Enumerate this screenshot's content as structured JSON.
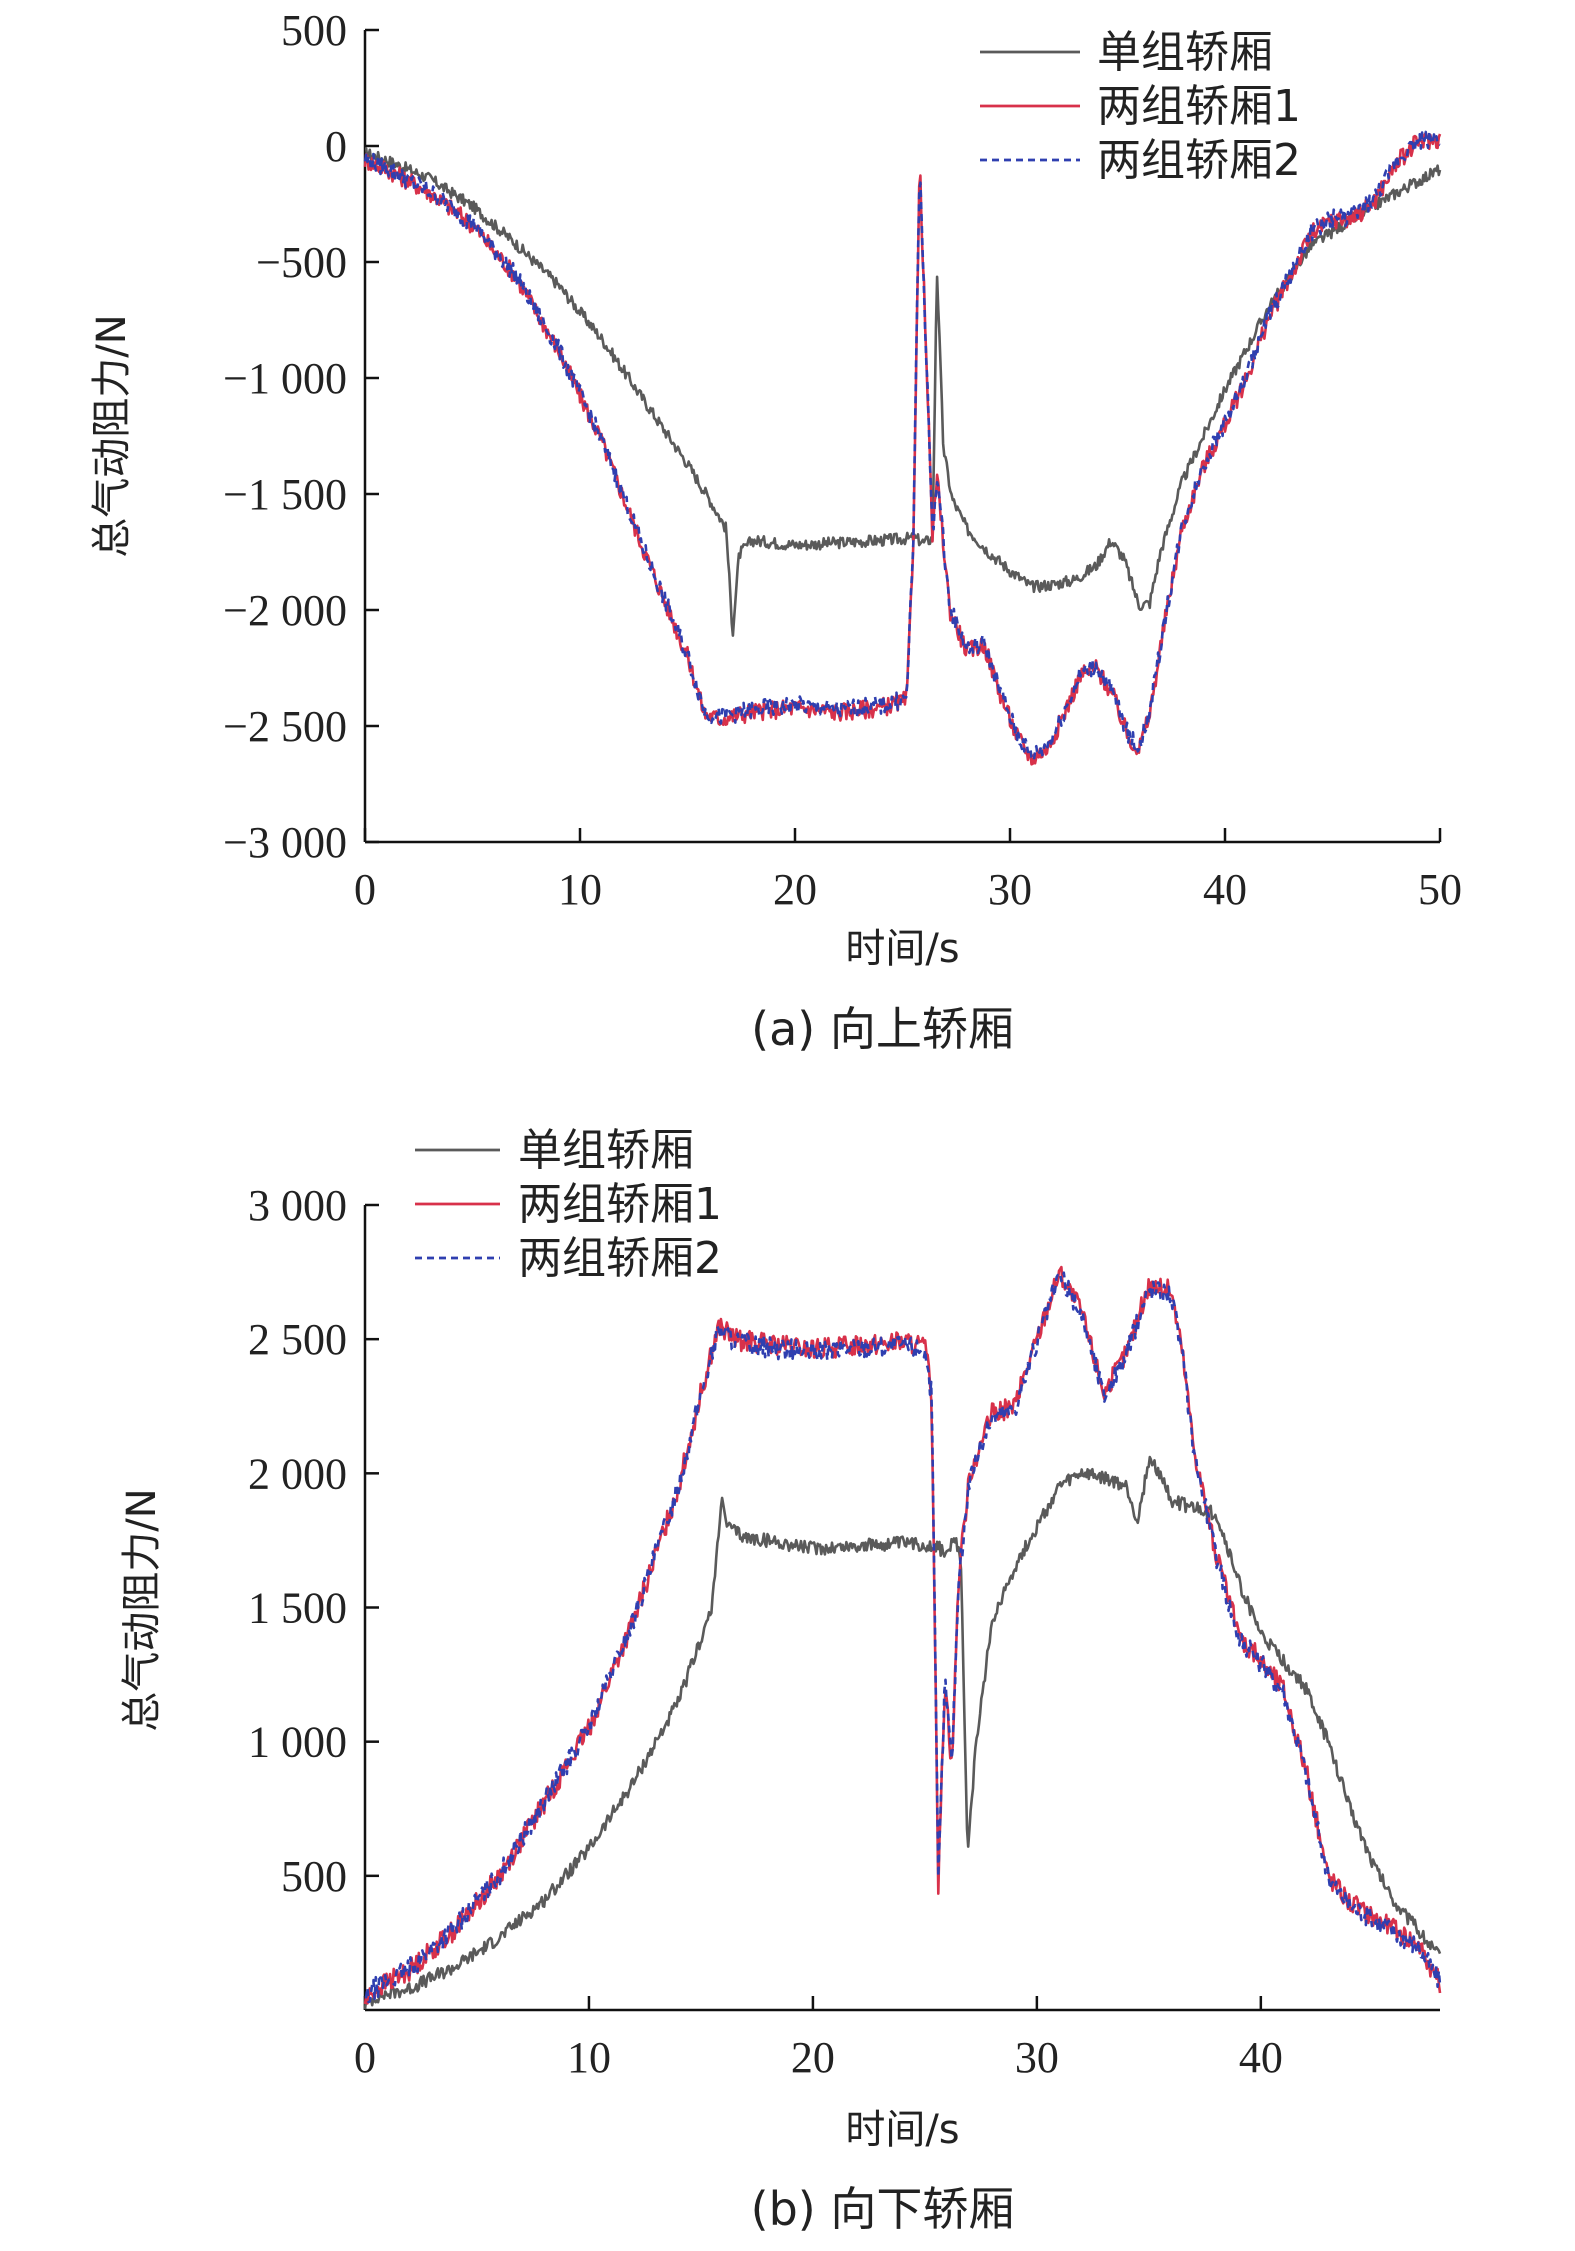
{
  "chart_data": [
    {
      "type": "line",
      "caption": "(a) 向上轿厢",
      "xlabel": "时间/s",
      "ylabel": "总气动阻力/N",
      "xlim": [
        0,
        50
      ],
      "ylim": [
        -3000,
        500
      ],
      "x_ticks": [
        0,
        10,
        20,
        30,
        40,
        50
      ],
      "x_tick_labels": [
        "0",
        "10",
        "20",
        "30",
        "40",
        "50"
      ],
      "y_ticks": [
        500,
        0,
        -500,
        -1000,
        -1500,
        -2000,
        -2500,
        -3000
      ],
      "y_tick_labels": [
        "500",
        "0",
        "−500",
        "−1 000",
        "−1 500",
        "−2 000",
        "−2 500",
        "−3 000"
      ],
      "legend_position": "top-right",
      "series": [
        {
          "name": "单组轿厢",
          "color": "#5a5a5a",
          "dash": "solid",
          "noise": 25,
          "x": [
            0,
            1,
            3,
            5,
            7,
            9,
            11,
            13,
            15,
            16,
            16.8,
            17.1,
            17.4,
            18,
            20,
            22,
            24,
            25.5,
            25.8,
            26,
            26.4,
            26.6,
            26.9,
            27.3,
            28,
            29,
            30,
            31,
            32,
            33,
            34,
            34.7,
            35.3,
            36,
            36.5,
            37,
            38,
            39,
            40,
            42,
            44,
            46,
            48,
            50
          ],
          "y": [
            -30,
            -60,
            -140,
            -260,
            -420,
            -600,
            -830,
            -1100,
            -1370,
            -1520,
            -1650,
            -2100,
            -1760,
            -1700,
            -1720,
            -1710,
            -1700,
            -1690,
            -1700,
            -1710,
            -1690,
            -520,
            -1300,
            -1520,
            -1650,
            -1750,
            -1830,
            -1900,
            -1890,
            -1870,
            -1810,
            -1700,
            -1780,
            -1980,
            -1970,
            -1750,
            -1450,
            -1250,
            -1050,
            -700,
            -430,
            -310,
            -200,
            -100
          ]
        },
        {
          "name": "两组轿厢1",
          "color": "#d8314a",
          "dash": "solid",
          "noise": 40,
          "x": [
            0,
            1,
            3,
            5,
            7,
            9,
            11,
            13,
            15,
            15.8,
            16.5,
            18,
            20,
            22,
            24,
            25.2,
            25.5,
            25.8,
            26.1,
            26.4,
            26.6,
            27.2,
            28,
            28.8,
            29.5,
            30.3,
            31,
            31.8,
            32.5,
            33.3,
            34,
            34.8,
            35.5,
            36,
            36.5,
            37.2,
            38,
            39,
            40,
            41,
            42,
            43,
            44,
            45,
            46,
            47,
            48,
            49,
            50
          ],
          "y": [
            -60,
            -100,
            -200,
            -340,
            -560,
            -880,
            -1270,
            -1750,
            -2200,
            -2450,
            -2470,
            -2440,
            -2420,
            -2440,
            -2420,
            -2390,
            -1700,
            -70,
            -900,
            -1700,
            -1420,
            -2000,
            -2180,
            -2150,
            -2350,
            -2540,
            -2640,
            -2590,
            -2450,
            -2280,
            -2250,
            -2370,
            -2550,
            -2600,
            -2450,
            -2050,
            -1650,
            -1380,
            -1200,
            -1000,
            -750,
            -570,
            -380,
            -320,
            -310,
            -230,
            -70,
            20,
            30
          ]
        },
        {
          "name": "两组轿厢2",
          "color": "#2f3fb0",
          "dash": "dashed",
          "noise": 40,
          "x": [
            0,
            1,
            3,
            5,
            7,
            9,
            11,
            13,
            15,
            15.8,
            16.5,
            18,
            20,
            22,
            24,
            25.2,
            25.5,
            25.8,
            26.1,
            26.4,
            26.6,
            27.2,
            28,
            28.8,
            29.5,
            30.3,
            31,
            31.8,
            32.5,
            33.3,
            34,
            34.8,
            35.5,
            36,
            36.5,
            37.2,
            38,
            39,
            40,
            41,
            42,
            43,
            44,
            45,
            46,
            47,
            48,
            49,
            50
          ],
          "y": [
            -55,
            -95,
            -195,
            -335,
            -555,
            -875,
            -1265,
            -1745,
            -2195,
            -2440,
            -2460,
            -2430,
            -2410,
            -2430,
            -2410,
            -2380,
            -1690,
            -75,
            -890,
            -1690,
            -1410,
            -1990,
            -2170,
            -2140,
            -2340,
            -2530,
            -2630,
            -2580,
            -2440,
            -2270,
            -2240,
            -2360,
            -2540,
            -2590,
            -2440,
            -2040,
            -1640,
            -1370,
            -1190,
            -990,
            -740,
            -560,
            -370,
            -310,
            -300,
            -220,
            -60,
            25,
            35
          ]
        }
      ]
    },
    {
      "type": "line",
      "caption": "(b) 向下轿厢",
      "xlabel": "时间/s",
      "ylabel": "总气动阻力/N",
      "xlim": [
        0,
        48
      ],
      "ylim": [
        0,
        3000
      ],
      "x_ticks": [
        0,
        10,
        20,
        30,
        40
      ],
      "x_tick_labels": [
        "0",
        "10",
        "20",
        "30",
        "40"
      ],
      "y_ticks": [
        500,
        1000,
        1500,
        2000,
        2500,
        3000
      ],
      "y_tick_labels": [
        "500",
        "1 000",
        "1 500",
        "2 000",
        "2 500",
        "3 000"
      ],
      "legend_position": "top-left",
      "series": [
        {
          "name": "单组轿厢",
          "color": "#5a5a5a",
          "dash": "solid",
          "noise": 25,
          "x": [
            0,
            0.5,
            2,
            4,
            6,
            8,
            10,
            12,
            14,
            15.5,
            15.9,
            16.2,
            17,
            18,
            20,
            22,
            24,
            25.5,
            26,
            26.3,
            26.6,
            26.9,
            27.3,
            28,
            29,
            30,
            31,
            32,
            33,
            34,
            34.5,
            35,
            35.5,
            36,
            37,
            38,
            39,
            40,
            41,
            42,
            43,
            44,
            45,
            46,
            47,
            48
          ],
          "y": [
            20,
            50,
            80,
            160,
            270,
            410,
            600,
            850,
            1150,
            1500,
            1900,
            1800,
            1760,
            1750,
            1720,
            1730,
            1740,
            1730,
            1700,
            1750,
            1700,
            600,
            1000,
            1450,
            1650,
            1800,
            1950,
            2000,
            1980,
            1950,
            1820,
            2050,
            2000,
            1900,
            1870,
            1850,
            1600,
            1400,
            1300,
            1200,
            1000,
            750,
            550,
            400,
            300,
            200
          ]
        },
        {
          "name": "两组轿厢1",
          "color": "#d8314a",
          "dash": "solid",
          "noise": 40,
          "x": [
            0,
            0.5,
            2,
            4,
            6,
            8,
            10,
            12,
            14,
            15,
            15.8,
            16.5,
            18,
            20,
            22,
            24,
            25,
            25.3,
            25.6,
            25.9,
            26.2,
            26.5,
            27,
            28,
            29,
            30,
            31,
            32,
            33,
            34,
            35,
            36,
            36.5,
            37,
            38,
            39,
            40,
            41,
            42,
            43,
            44,
            45,
            46,
            47,
            48
          ],
          "y": [
            30,
            80,
            150,
            300,
            500,
            770,
            1050,
            1450,
            1950,
            2300,
            2550,
            2500,
            2480,
            2460,
            2480,
            2490,
            2470,
            2300,
            470,
            1250,
            900,
            1600,
            2000,
            2220,
            2250,
            2500,
            2750,
            2600,
            2300,
            2450,
            2700,
            2680,
            2450,
            2100,
            1700,
            1400,
            1300,
            1200,
            900,
            500,
            400,
            350,
            300,
            250,
            100
          ]
        },
        {
          "name": "两组轿厢2",
          "color": "#2f3fb0",
          "dash": "dashed",
          "noise": 40,
          "x": [
            0,
            0.5,
            2,
            4,
            6,
            8,
            10,
            12,
            14,
            15,
            15.8,
            16.5,
            18,
            20,
            22,
            24,
            25,
            25.3,
            25.6,
            25.9,
            26.2,
            26.5,
            27,
            28,
            29,
            30,
            31,
            32,
            33,
            34,
            35,
            36,
            36.5,
            37,
            38,
            39,
            40,
            41,
            42,
            43,
            44,
            45,
            46,
            47,
            48
          ],
          "y": [
            35,
            85,
            155,
            305,
            505,
            775,
            1055,
            1455,
            1955,
            2295,
            2540,
            2490,
            2470,
            2450,
            2470,
            2480,
            2460,
            2290,
            480,
            1240,
            910,
            1590,
            1990,
            2210,
            2240,
            2490,
            2740,
            2590,
            2290,
            2440,
            2690,
            2670,
            2440,
            2090,
            1690,
            1390,
            1290,
            1190,
            890,
            490,
            390,
            340,
            290,
            240,
            105
          ]
        }
      ]
    }
  ]
}
